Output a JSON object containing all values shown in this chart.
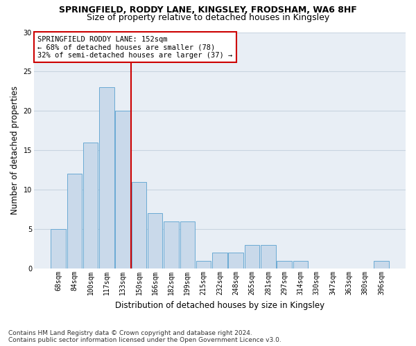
{
  "title1": "SPRINGFIELD, RODDY LANE, KINGSLEY, FRODSHAM, WA6 8HF",
  "title2": "Size of property relative to detached houses in Kingsley",
  "xlabel": "Distribution of detached houses by size in Kingsley",
  "ylabel": "Number of detached properties",
  "categories": [
    "68sqm",
    "84sqm",
    "100sqm",
    "117sqm",
    "133sqm",
    "150sqm",
    "166sqm",
    "182sqm",
    "199sqm",
    "215sqm",
    "232sqm",
    "248sqm",
    "265sqm",
    "281sqm",
    "297sqm",
    "314sqm",
    "330sqm",
    "347sqm",
    "363sqm",
    "380sqm",
    "396sqm"
  ],
  "values": [
    5,
    12,
    16,
    23,
    20,
    11,
    7,
    6,
    6,
    1,
    2,
    2,
    3,
    3,
    1,
    1,
    0,
    0,
    0,
    0,
    1
  ],
  "bar_color": "#c9d9ea",
  "bar_edge_color": "#6aaad4",
  "vline_index": 5,
  "annotation_text": "SPRINGFIELD RODDY LANE: 152sqm\n← 68% of detached houses are smaller (78)\n32% of semi-detached houses are larger (37) →",
  "annotation_box_color": "#ffffff",
  "annotation_box_edge_color": "#cc0000",
  "vline_color": "#cc0000",
  "ylim": [
    0,
    30
  ],
  "yticks": [
    0,
    5,
    10,
    15,
    20,
    25,
    30
  ],
  "footer": "Contains HM Land Registry data © Crown copyright and database right 2024.\nContains public sector information licensed under the Open Government Licence v3.0.",
  "grid_color": "#c8d4e0",
  "background_color": "#e8eef5",
  "title1_fontsize": 9,
  "title2_fontsize": 9,
  "ylabel_fontsize": 8.5,
  "xlabel_fontsize": 8.5,
  "tick_fontsize": 7,
  "annotation_fontsize": 7.5,
  "footer_fontsize": 6.5
}
